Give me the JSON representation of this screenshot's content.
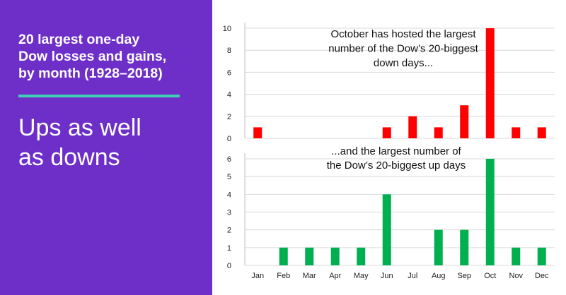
{
  "headline": {
    "lines": [
      "20 largest one-day",
      "Dow losses and gains,",
      "by month (1928–2018)"
    ]
  },
  "subhead": {
    "lines": [
      "Ups as well",
      "as downs"
    ]
  },
  "colors": {
    "panel_bg": "#6e2fc9",
    "accent": "#3fcfb4",
    "losses": "#ff0000",
    "gains": "#00b050"
  },
  "chart_data": [
    {
      "type": "bar",
      "categories": [
        "Jan",
        "Feb",
        "Mar",
        "Apr",
        "May",
        "Jun",
        "Jul",
        "Aug",
        "Sep",
        "Oct",
        "Nov",
        "Dec"
      ],
      "values": [
        1,
        0,
        0,
        0,
        0,
        1,
        2,
        1,
        3,
        10,
        1,
        1
      ],
      "ylim": [
        0,
        10
      ],
      "yticks": [
        0,
        2,
        4,
        6,
        8,
        10
      ],
      "grid": true,
      "annotation": [
        "October has hosted the largest",
        "number of the Dow’s 20-biggest",
        "down days..."
      ]
    },
    {
      "type": "bar",
      "categories": [
        "Jan",
        "Feb",
        "Mar",
        "Apr",
        "May",
        "Jun",
        "Jul",
        "Aug",
        "Sep",
        "Oct",
        "Nov",
        "Dec"
      ],
      "values": [
        0,
        1,
        1,
        1,
        1,
        4,
        0,
        2,
        2,
        6,
        1,
        1
      ],
      "ylim": [
        0,
        6
      ],
      "yticks": [
        0,
        1,
        2,
        3,
        4,
        5,
        6
      ],
      "grid": true,
      "annotation": [
        "...and the largest number of",
        "the Dow’s 20-biggest up days"
      ]
    }
  ]
}
